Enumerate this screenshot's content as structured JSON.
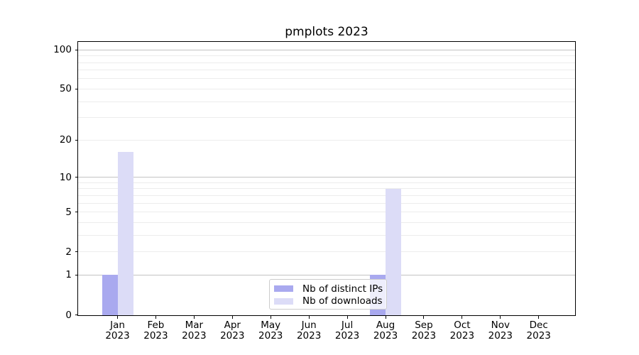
{
  "title": "pmplots 2023",
  "chart_data": {
    "type": "bar",
    "title": "pmplots 2023",
    "yscale": "log1p",
    "ymax": 115,
    "ylim": [
      0,
      115
    ],
    "grid": true,
    "yticks": [
      0,
      1,
      2,
      5,
      10,
      20,
      50,
      100
    ],
    "gridlines_major": [
      1,
      10,
      100
    ],
    "gridlines_minor": [
      2,
      3,
      4,
      5,
      6,
      7,
      8,
      9,
      20,
      30,
      40,
      50,
      60,
      70,
      80,
      90
    ],
    "categories": [
      "Jan",
      "Feb",
      "Mar",
      "Apr",
      "May",
      "Jun",
      "Jul",
      "Aug",
      "Sep",
      "Oct",
      "Nov",
      "Dec"
    ],
    "year": "2023",
    "series": [
      {
        "name": "Nb of distinct IPs",
        "color": "#a9a9ef",
        "values": [
          1,
          0,
          0,
          0,
          0,
          0,
          0,
          1,
          0,
          0,
          0,
          0
        ]
      },
      {
        "name": "Nb of downloads",
        "color": "#dcdcf7",
        "values": [
          16,
          0,
          0,
          0,
          0,
          0,
          0,
          8,
          0,
          0,
          0,
          0
        ]
      }
    ],
    "legend_position": "lower center"
  }
}
